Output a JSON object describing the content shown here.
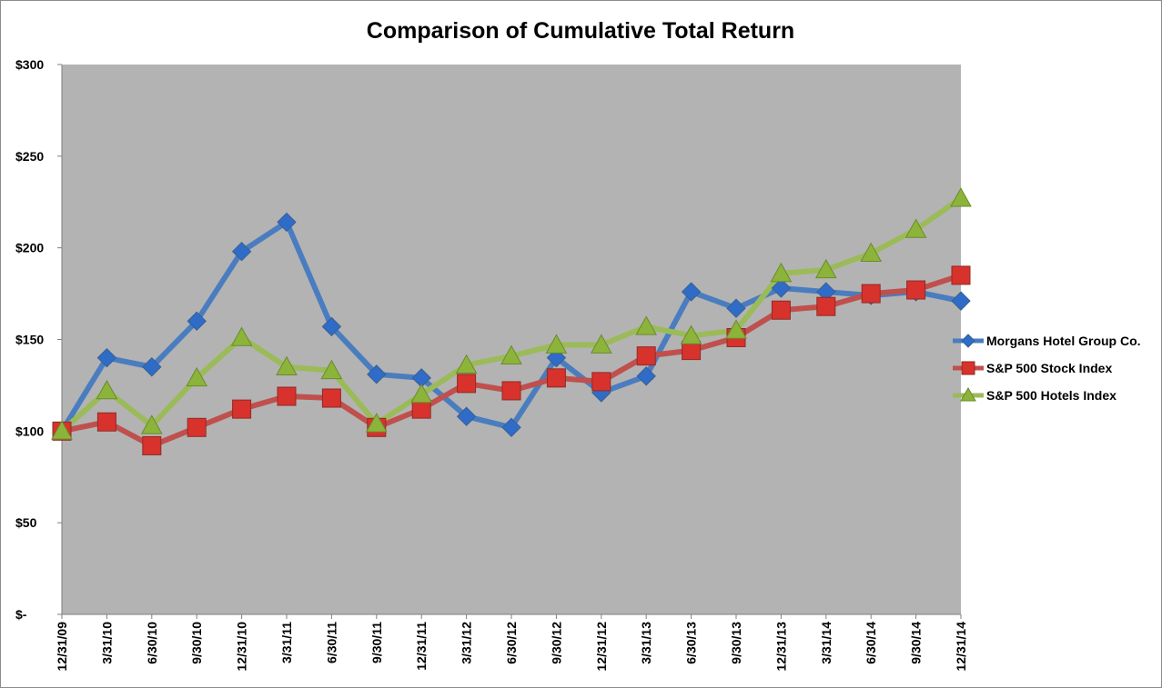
{
  "chart_data": {
    "type": "line",
    "title": "Comparison of Cumulative Total Return",
    "xlabel": "",
    "ylabel": "",
    "ylim": [
      0,
      300
    ],
    "yticks": [
      0,
      50,
      100,
      150,
      200,
      250,
      300
    ],
    "ytick_labels": [
      "$-",
      "$50",
      "$100",
      "$150",
      "$200",
      "$250",
      "$300"
    ],
    "grid": false,
    "legend_position": "right",
    "plot_background": "#b3b3b3",
    "categories": [
      "12/31/09",
      "3/31/10",
      "6/30/10",
      "9/30/10",
      "12/31/10",
      "3/31/11",
      "6/30/11",
      "9/30/11",
      "12/31/11",
      "3/31/12",
      "6/30/12",
      "9/30/12",
      "12/31/12",
      "3/31/13",
      "6/30/13",
      "9/30/13",
      "12/31/13",
      "3/31/14",
      "6/30/14",
      "9/30/14",
      "12/31/14"
    ],
    "series": [
      {
        "name": "Morgans Hotel Group Co.",
        "color": "#4a7dbf",
        "marker": "diamond",
        "marker_color": "#2e6cc7",
        "values": [
          100,
          140,
          135,
          160,
          198,
          214,
          157,
          131,
          129,
          108,
          102,
          140,
          121,
          130,
          176,
          167,
          178,
          176,
          174,
          176,
          171
        ]
      },
      {
        "name": "S&P 500 Stock Index",
        "color": "#c0504d",
        "marker": "square",
        "marker_color": "#d8322c",
        "values": [
          100,
          105,
          92,
          102,
          112,
          119,
          118,
          102,
          112,
          126,
          122,
          129,
          127,
          141,
          144,
          151,
          166,
          168,
          175,
          177,
          185
        ]
      },
      {
        "name": "S&P 500 Hotels Index",
        "color": "#9bbb59",
        "marker": "triangle",
        "marker_color": "#8cb43a",
        "values": [
          100,
          122,
          103,
          129,
          151,
          135,
          133,
          104,
          120,
          136,
          141,
          147,
          147,
          157,
          152,
          155,
          186,
          188,
          197,
          210,
          227
        ]
      }
    ]
  }
}
